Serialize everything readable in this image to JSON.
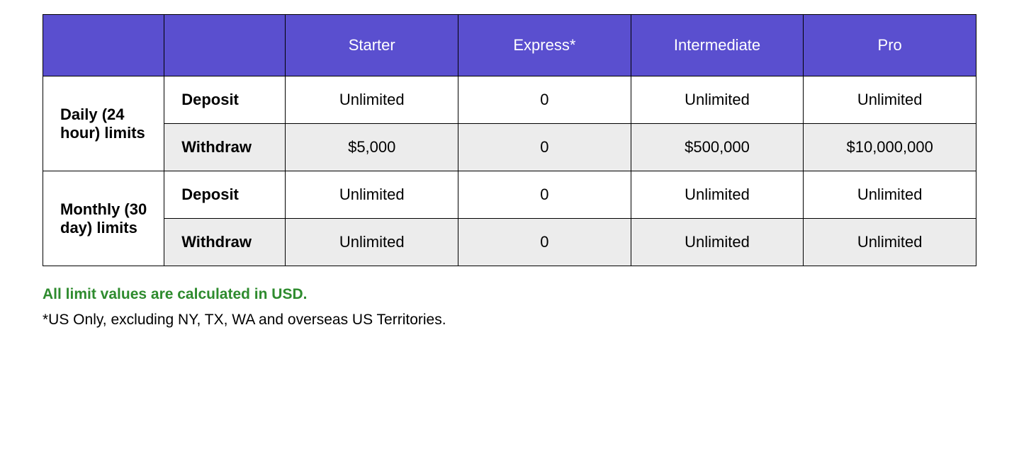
{
  "table": {
    "header_bg": "#5a4fcf",
    "header_fg": "#ffffff",
    "border_color": "#000000",
    "alt_row_bg": "#ececec",
    "tiers": [
      "Starter",
      "Express*",
      "Intermediate",
      "Pro"
    ],
    "groups": [
      {
        "label": "Daily (24 hour) limits",
        "rows": [
          {
            "type": "Deposit",
            "values": [
              "Unlimited",
              "0",
              "Unlimited",
              "Unlimited"
            ]
          },
          {
            "type": "Withdraw",
            "values": [
              "$5,000",
              "0",
              "$500,000",
              "$10,000,000"
            ]
          }
        ]
      },
      {
        "label": "Monthly (30 day) limits",
        "rows": [
          {
            "type": "Deposit",
            "values": [
              "Unlimited",
              "0",
              "Unlimited",
              "Unlimited"
            ]
          },
          {
            "type": "Withdraw",
            "values": [
              "Unlimited",
              "0",
              "Unlimited",
              "Unlimited"
            ]
          }
        ]
      }
    ]
  },
  "footnote": {
    "usd_note": "All limit values are calculated in USD.",
    "usd_color": "#2e8b2e",
    "disclaimer": "*US Only, excluding NY, TX, WA and overseas US Territories."
  }
}
